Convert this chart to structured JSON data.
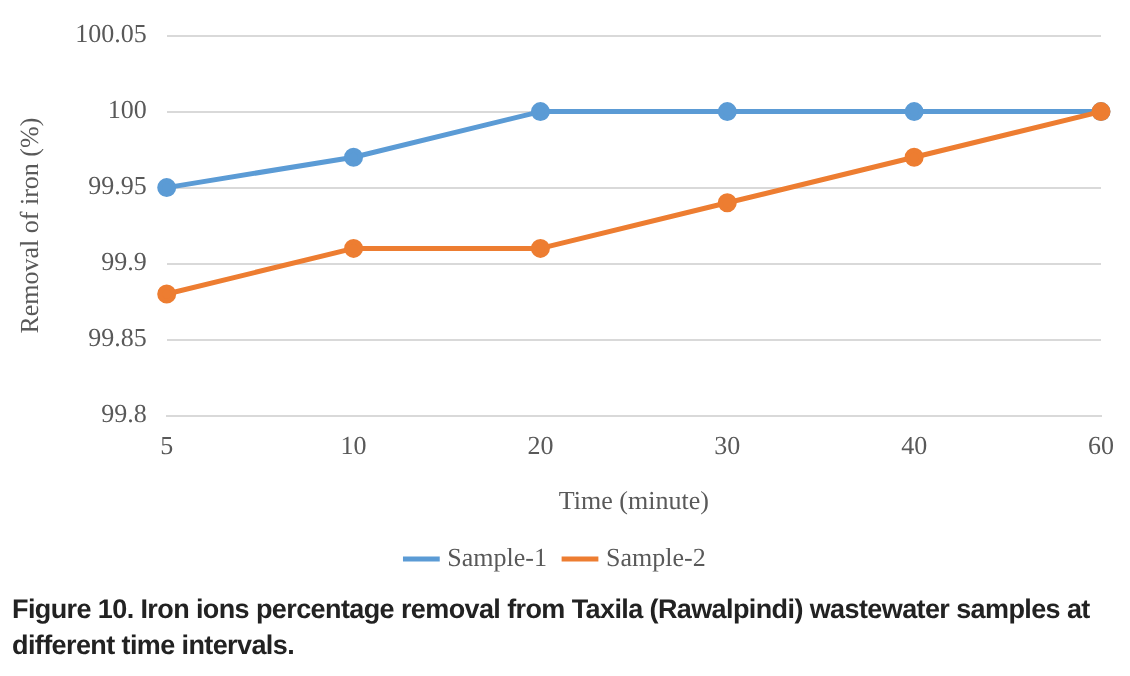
{
  "chart_data": {
    "type": "line",
    "xlabel": "Time (minute)",
    "ylabel": "Removal of iron (%)",
    "categories": [
      "5",
      "10",
      "20",
      "30",
      "40",
      "60"
    ],
    "series": [
      {
        "name": "Sample-1",
        "color": "#5b9bd5",
        "values": [
          99.95,
          99.97,
          100,
          100,
          100,
          100
        ]
      },
      {
        "name": "Sample-2",
        "color": "#ed7d31",
        "values": [
          99.88,
          99.91,
          99.91,
          99.94,
          99.97,
          100
        ]
      }
    ],
    "ylim": [
      99.8,
      100.05
    ],
    "yticks": [
      99.8,
      99.85,
      99.9,
      99.95,
      100,
      100.05
    ],
    "grid": "y",
    "legend": "bottom",
    "marker": "circle",
    "line_style": "solid",
    "annotations": [
      "Figure 10. Iron ions percentage removal from Taxila (Rawalpindi) wastewater samples at different time intervals."
    ]
  }
}
